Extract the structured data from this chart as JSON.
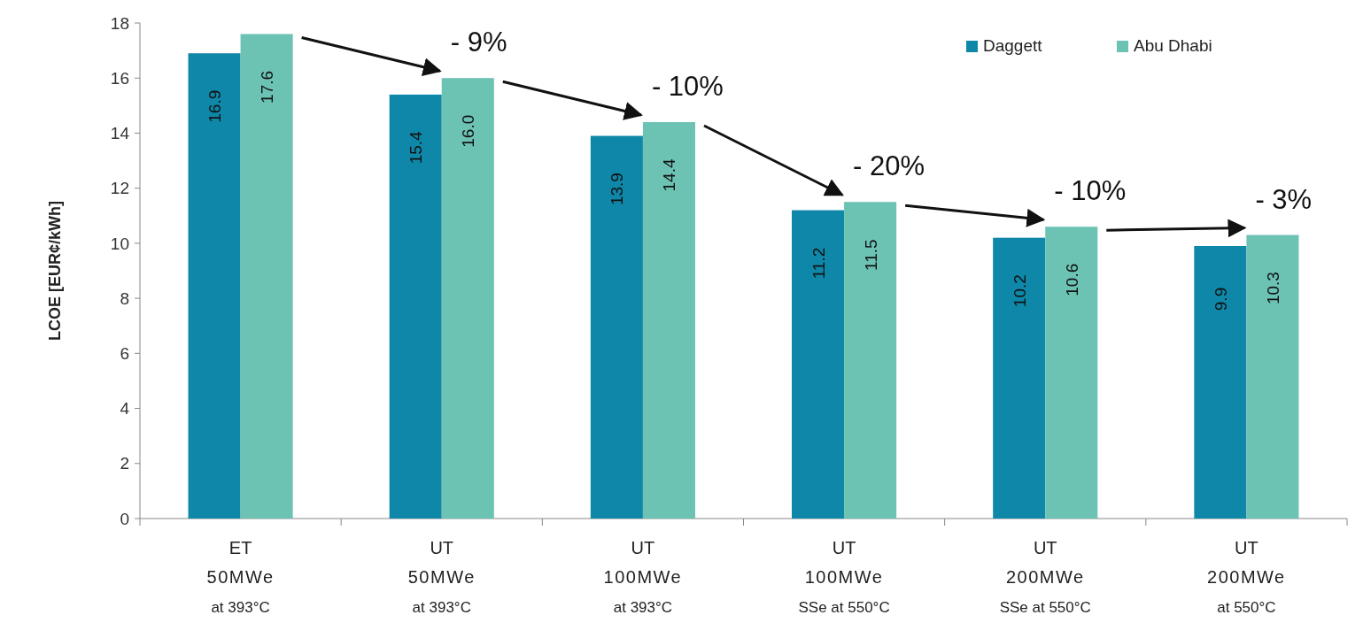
{
  "chart_data": {
    "type": "bar",
    "ylabel": "LCOE [EUR¢/kWh]",
    "categories": [
      "ET\n50MWe\nat 393°C",
      "UT\n50MWe\nat 393°C",
      "UT\n100MWe\nat 393°C",
      "UT\n100MWe\nSSe at 550°C",
      "UT\n200MWe\nSSe at 550°C",
      "UT\n200MWe\nat 550°C"
    ],
    "series": [
      {
        "name": "Daggett",
        "color": "#0f87a8",
        "values": [
          16.9,
          15.4,
          13.9,
          11.2,
          10.2,
          9.9
        ],
        "value_labels": [
          "16.9",
          "15.4",
          "13.9",
          "11.2",
          "10.2",
          "9.9"
        ]
      },
      {
        "name": "Abu Dhabi",
        "color": "#6cc3b4",
        "values": [
          17.6,
          16.0,
          14.4,
          11.5,
          10.6,
          10.3
        ],
        "value_labels": [
          "17.6",
          "16.0",
          "14.4",
          "11.5",
          "10.6",
          "10.3"
        ]
      }
    ],
    "ylim": [
      0,
      18
    ],
    "yticks": [
      0,
      2,
      4,
      6,
      8,
      10,
      12,
      14,
      16,
      18
    ],
    "legend": "top right",
    "annotations": [
      "- 9%",
      "- 10%",
      "- 20%",
      "- 10%",
      "- 3%"
    ]
  }
}
